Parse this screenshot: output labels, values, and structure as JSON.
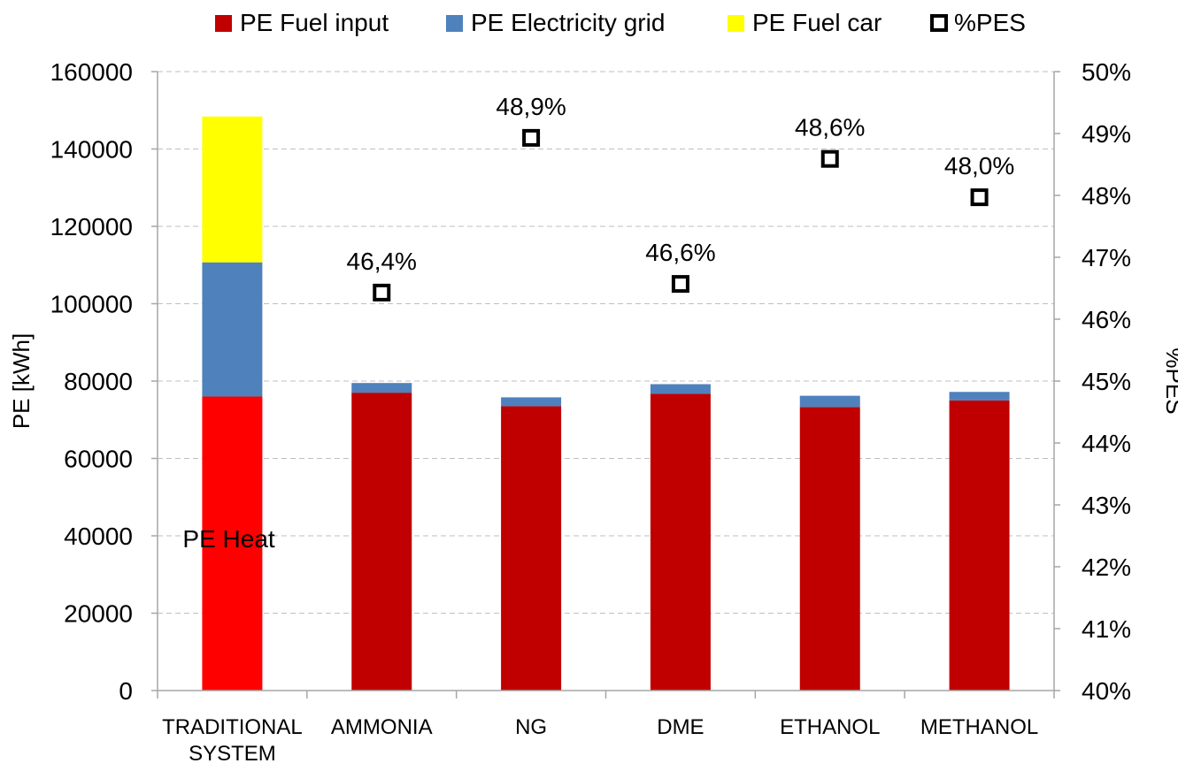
{
  "legend": {
    "fuel_input": "PE Fuel input",
    "electricity_grid": "PE Electricity grid",
    "fuel_car": "PE Fuel car",
    "pes": "%PES"
  },
  "colors": {
    "fuel_input": "#C00000",
    "fuel_input_traditional": "#FF0000",
    "electricity_grid": "#4F81BD",
    "fuel_car": "#FFFF00",
    "gridline": "#BFBFBF",
    "axis": "#A6A6A6"
  },
  "chart_data": {
    "type": "bar",
    "stacked": true,
    "categories": [
      [
        "TRADITIONAL",
        "SYSTEM"
      ],
      [
        "AMMONIA"
      ],
      [
        "NG"
      ],
      [
        "DME"
      ],
      [
        "ETHANOL"
      ],
      [
        "METHANOL"
      ]
    ],
    "ylabel": "PE  [kWh]",
    "y2label": "%PES",
    "ylim": [
      0,
      160000
    ],
    "yticks": [
      "0",
      "20000",
      "40000",
      "60000",
      "80000",
      "100000",
      "120000",
      "140000",
      "160000"
    ],
    "y2lim": [
      0.4,
      0.5
    ],
    "y2ticks": [
      "40%",
      "41%",
      "42%",
      "43%",
      "44%",
      "45%",
      "46%",
      "47%",
      "48%",
      "49%",
      "50%"
    ],
    "grid": "horizontal dashed",
    "legend_position": "top",
    "series": [
      {
        "name": "PE Fuel input",
        "values": [
          76000,
          77000,
          73500,
          76700,
          73300,
          75000
        ]
      },
      {
        "name": "PE Electricity grid",
        "values": [
          34700,
          2500,
          2300,
          2500,
          2900,
          2200
        ]
      },
      {
        "name": "PE Fuel car",
        "values": [
          37700,
          0,
          0,
          0,
          0,
          0
        ]
      }
    ],
    "pes": {
      "name": "%PES",
      "axis": "secondary",
      "values": [
        null,
        0.4643,
        0.4893,
        0.4657,
        0.4859,
        0.4797
      ],
      "labels": [
        "",
        "46,4%",
        "48,9%",
        "46,6%",
        "48,6%",
        "48,0%"
      ]
    },
    "annotations": [
      {
        "text": "PE Heat",
        "category": 0
      }
    ]
  }
}
